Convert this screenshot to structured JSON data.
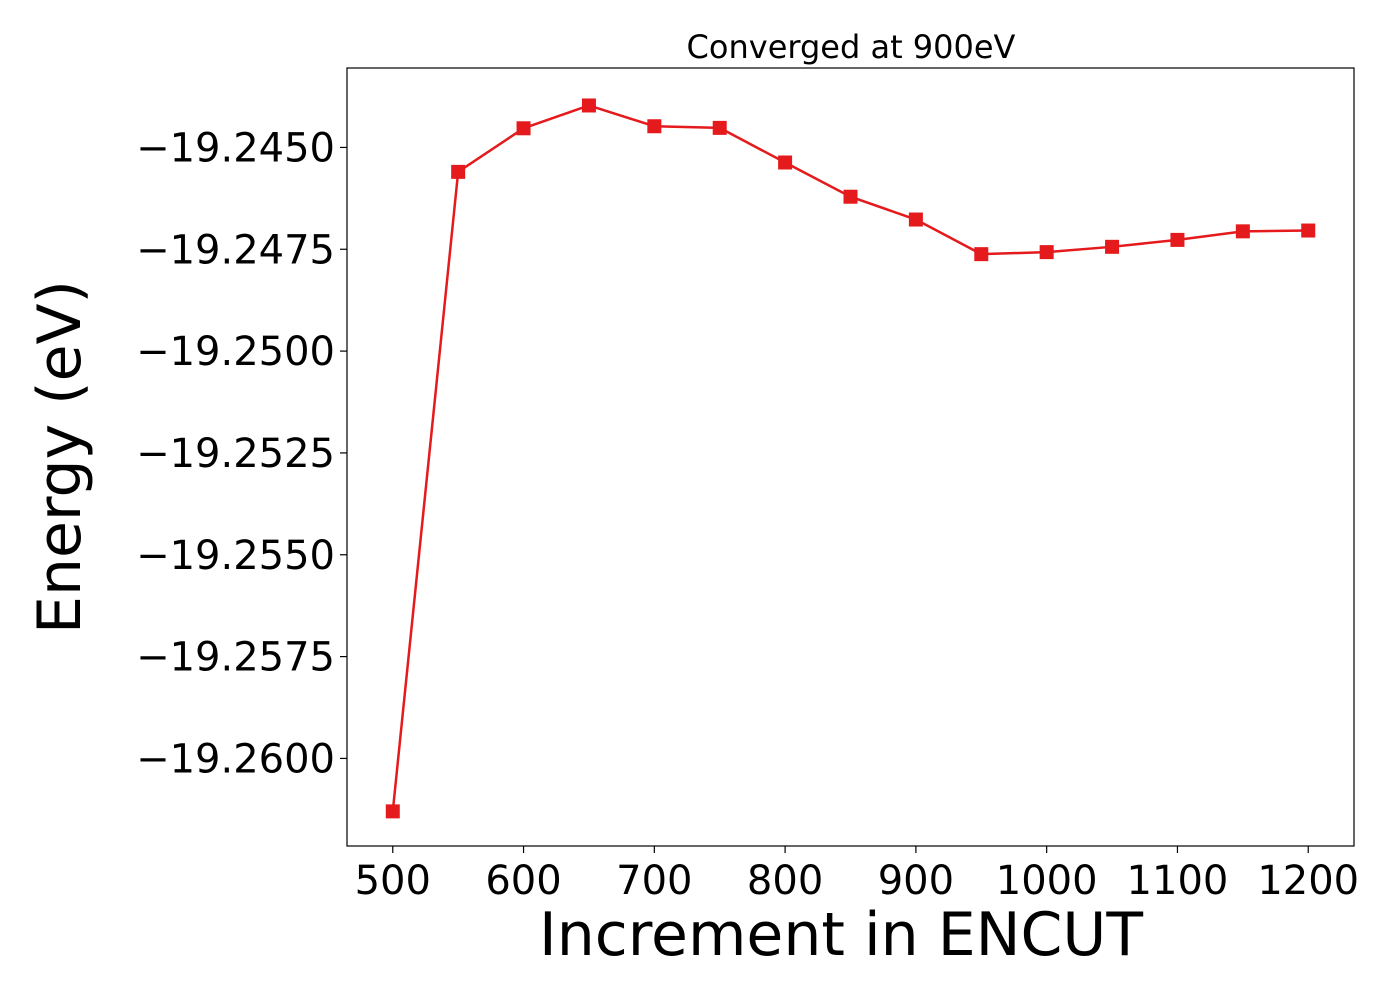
{
  "chart_data": {
    "type": "line",
    "title": "Converged at 900eV",
    "xlabel": "Increment in ENCUT",
    "ylabel": "Energy (eV)",
    "x": [
      500,
      550,
      600,
      650,
      700,
      750,
      800,
      850,
      900,
      950,
      1000,
      1050,
      1100,
      1150,
      1200
    ],
    "series": [
      {
        "values": [
          -19.2613,
          -19.2456,
          -19.24453,
          -19.24397,
          -19.24448,
          -19.24452,
          -19.24537,
          -19.24621,
          -19.24677,
          -19.24762,
          -19.24757,
          -19.24744,
          -19.24727,
          -19.24706,
          -19.24704
        ],
        "color": "#e41a1c",
        "marker": "square"
      }
    ],
    "xticks": [
      500,
      600,
      700,
      800,
      900,
      1000,
      1100,
      1200
    ],
    "yticks": [
      -19.26,
      -19.2575,
      -19.255,
      -19.2525,
      -19.25,
      -19.2475,
      -19.245
    ],
    "ytick_labels": [
      "−19.2600",
      "−19.2575",
      "−19.2550",
      "−19.2525",
      "−19.2500",
      "−19.2475",
      "−19.2450"
    ],
    "xlim": [
      465,
      1235
    ],
    "ylim": [
      -19.26215,
      -19.24305
    ],
    "grid": false,
    "legend": "none"
  }
}
